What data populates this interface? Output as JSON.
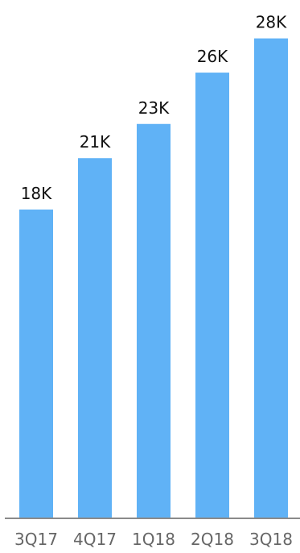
{
  "chart_data": {
    "type": "bar",
    "title": "",
    "xlabel": "",
    "ylabel": "",
    "categories": [
      "3Q17",
      "4Q17",
      "1Q18",
      "2Q18",
      "3Q18"
    ],
    "values": [
      18,
      21,
      23,
      26,
      28
    ],
    "data_labels": [
      "18K",
      "21K",
      "23K",
      "26K",
      "28K"
    ],
    "unit_suffix": "K",
    "ylim": [
      0,
      28.5
    ],
    "grid": false,
    "legend": "none",
    "bar_color": "#60b2f6",
    "value_label_color": "#111111",
    "tick_label_color": "#666666",
    "baseline_color": "#8a8a8a"
  }
}
